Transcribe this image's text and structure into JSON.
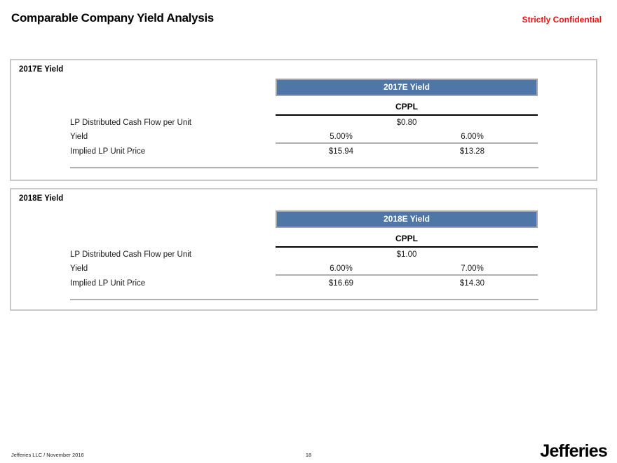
{
  "page": {
    "title": "Comparable Company Yield Analysis",
    "confidential": "Strictly Confidential"
  },
  "colors": {
    "accent_blue": "#4e76a6",
    "confidential_red": "#ee1111",
    "rule_gray": "#b0b0b0",
    "box_border_gray": "#c9c9c9"
  },
  "sections": [
    {
      "box_label": "2017E Yield",
      "table": {
        "header": "2017E Yield",
        "column_group": "CPPL",
        "rows": [
          {
            "label": "LP Distributed Cash Flow per Unit",
            "span_value": "$0.80"
          },
          {
            "label": "Yield",
            "values": [
              "5.00%",
              "6.00%"
            ]
          },
          {
            "label": "Implied LP Unit Price",
            "values": [
              "$15.94",
              "$13.28"
            ]
          }
        ]
      }
    },
    {
      "box_label": "2018E Yield",
      "table": {
        "header": "2018E Yield",
        "column_group": "CPPL",
        "rows": [
          {
            "label": "LP Distributed Cash Flow per Unit",
            "span_value": "$1.00"
          },
          {
            "label": "Yield",
            "values": [
              "6.00%",
              "7.00%"
            ]
          },
          {
            "label": "Implied LP Unit Price",
            "values": [
              "$16.69",
              "$14.30"
            ]
          }
        ]
      }
    }
  ],
  "footer": {
    "left": "Jefferies LLC / November 2016",
    "page_number": "18",
    "logo": "Jefferies"
  }
}
